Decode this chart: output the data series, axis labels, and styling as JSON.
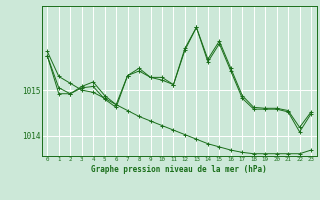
{
  "bg_color": "#cce8d8",
  "grid_color": "#ffffff",
  "line_color": "#1a6e1a",
  "title": "Graphe pression niveau de la mer (hPa)",
  "xlim": [
    -0.5,
    23.5
  ],
  "ylim": [
    1013.55,
    1016.85
  ],
  "yticks": [
    1014,
    1015
  ],
  "xticks": [
    0,
    1,
    2,
    3,
    4,
    5,
    6,
    7,
    8,
    9,
    10,
    11,
    12,
    13,
    14,
    15,
    16,
    17,
    18,
    19,
    20,
    21,
    22,
    23
  ],
  "series": [
    [
      1015.85,
      1015.3,
      1015.15,
      1015.0,
      1014.95,
      1014.82,
      1014.68,
      1014.55,
      1014.42,
      1014.32,
      1014.22,
      1014.12,
      1014.02,
      1013.92,
      1013.82,
      1013.75,
      1013.68,
      1013.63,
      1013.6,
      1013.6,
      1013.6,
      1013.6,
      1013.6,
      1013.68
    ],
    [
      1015.75,
      1015.05,
      1014.92,
      1015.05,
      1015.08,
      1014.8,
      1014.62,
      1015.32,
      1015.48,
      1015.28,
      1015.28,
      1015.12,
      1015.92,
      1016.38,
      1015.68,
      1016.08,
      1015.48,
      1014.88,
      1014.62,
      1014.6,
      1014.6,
      1014.55,
      1014.18,
      1014.52
    ],
    [
      1015.75,
      1014.92,
      1014.92,
      1015.08,
      1015.18,
      1014.88,
      1014.68,
      1015.32,
      1015.42,
      1015.28,
      1015.22,
      1015.12,
      1015.88,
      1016.38,
      1015.62,
      1016.02,
      1015.42,
      1014.82,
      1014.58,
      1014.58,
      1014.58,
      1014.52,
      1014.08,
      1014.48
    ]
  ]
}
